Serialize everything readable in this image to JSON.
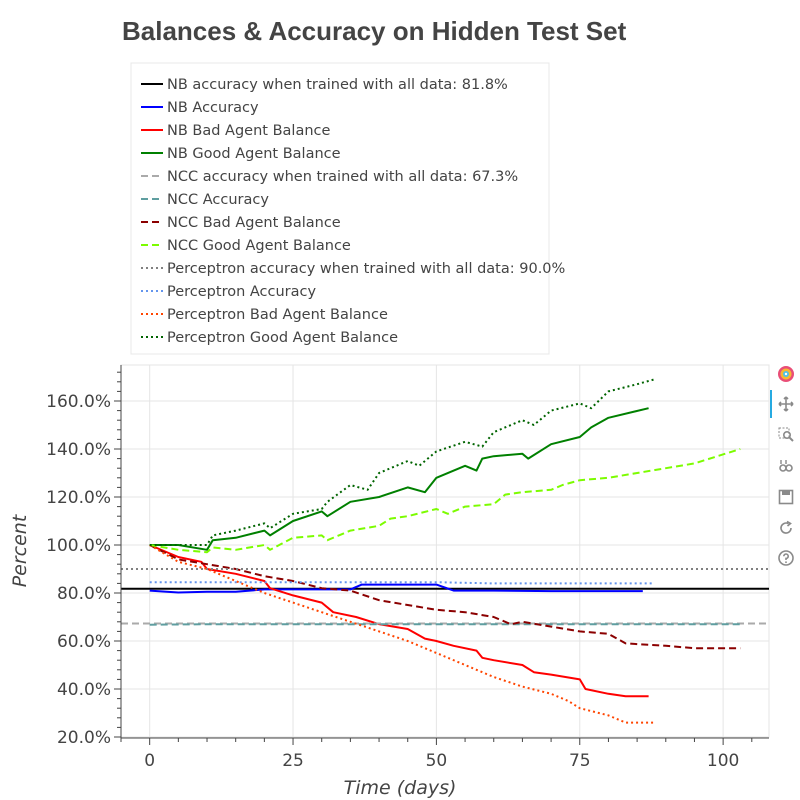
{
  "chart_data": {
    "type": "line",
    "title": "Balances & Accuracy on Hidden Test Set",
    "xlabel": "Time (days)",
    "ylabel": "Percent",
    "xlim": [
      -5,
      108
    ],
    "ylim": [
      20,
      175
    ],
    "xticks": [
      0,
      25,
      50,
      75,
      100
    ],
    "yticks": [
      20,
      40,
      60,
      80,
      100,
      120,
      140,
      160
    ],
    "ytick_labels": [
      "20.0%",
      "40.0%",
      "60.0%",
      "80.0%",
      "100.0%",
      "120.0%",
      "140.0%",
      "160.0%"
    ],
    "grid": true,
    "legend_position": "top-left",
    "series": [
      {
        "name": "NB accuracy when trained with all data: 81.8%",
        "color": "#000000",
        "dash": "solid",
        "x": [
          -5,
          108
        ],
        "y": [
          81.8,
          81.8
        ]
      },
      {
        "name": "NB Accuracy",
        "color": "#0000ff",
        "dash": "solid",
        "x": [
          0,
          5,
          10,
          15,
          20,
          25,
          30,
          35,
          37,
          40,
          45,
          50,
          53,
          60,
          70,
          80,
          86
        ],
        "y": [
          81,
          80.2,
          80.5,
          80.5,
          81.5,
          81.5,
          81.5,
          81.5,
          83.5,
          83.5,
          83.5,
          83.5,
          81,
          81,
          80.8,
          80.8,
          80.8
        ]
      },
      {
        "name": "NB Bad Agent Balance",
        "color": "#ff0000",
        "dash": "solid",
        "x": [
          0,
          5,
          9,
          10,
          15,
          20,
          21,
          25,
          30,
          32,
          36,
          40,
          45,
          48,
          50,
          53,
          57,
          58,
          60,
          65,
          67,
          70,
          75,
          76,
          80,
          83,
          87
        ],
        "y": [
          100,
          95,
          93,
          90,
          88,
          85,
          82,
          79,
          76,
          72,
          70,
          67,
          65,
          61,
          60,
          58,
          56,
          53,
          52,
          50,
          47,
          46,
          44,
          40,
          38,
          37,
          37
        ]
      },
      {
        "name": "NB Good Agent Balance",
        "color": "#008000",
        "dash": "solid",
        "x": [
          0,
          5,
          10,
          11,
          15,
          20,
          21,
          25,
          30,
          31,
          35,
          40,
          45,
          48,
          50,
          55,
          57,
          58,
          60,
          65,
          66,
          70,
          75,
          77,
          80,
          87
        ],
        "y": [
          100,
          100,
          98,
          102,
          103,
          106,
          104,
          110,
          114,
          112,
          118,
          120,
          124,
          122,
          128,
          133,
          131,
          136,
          137,
          138,
          136,
          142,
          145,
          149,
          153,
          157
        ]
      },
      {
        "name": "NCC accuracy when trained with all data: 67.3%",
        "color": "#aaaaaa",
        "dash": "dashed",
        "x": [
          -5,
          108
        ],
        "y": [
          67.3,
          67.3
        ]
      },
      {
        "name": "NCC Accuracy",
        "color": "#5f9ea0",
        "dash": "dashed",
        "x": [
          0,
          10,
          20,
          40,
          60,
          80,
          103
        ],
        "y": [
          66.8,
          67,
          67,
          67,
          67,
          67,
          67
        ]
      },
      {
        "name": "NCC Bad Agent Balance",
        "color": "#8b0000",
        "dash": "dashed",
        "x": [
          0,
          5,
          10,
          15,
          20,
          25,
          30,
          35,
          40,
          45,
          50,
          55,
          60,
          63,
          65,
          70,
          75,
          80,
          83,
          90,
          95,
          103
        ],
        "y": [
          100,
          94,
          92,
          90,
          87,
          85,
          82,
          81,
          77,
          75,
          73,
          72,
          70,
          67,
          68,
          66,
          64,
          63,
          59,
          58,
          57,
          57
        ]
      },
      {
        "name": "NCC Good Agent Balance",
        "color": "#7cfc00",
        "dash": "dashed",
        "x": [
          0,
          5,
          10,
          11,
          15,
          20,
          21,
          25,
          30,
          31,
          35,
          40,
          42,
          45,
          50,
          52,
          55,
          60,
          62,
          65,
          70,
          72,
          75,
          80,
          85,
          90,
          95,
          103
        ],
        "y": [
          100,
          98,
          97,
          99,
          98,
          100,
          98,
          103,
          104,
          102,
          106,
          108,
          111,
          112,
          115,
          113,
          116,
          117,
          121,
          122,
          123,
          125,
          127,
          128,
          130,
          132,
          134,
          140
        ]
      },
      {
        "name": "Perceptron accuracy when trained with all data: 90.0%",
        "color": "#808080",
        "dash": "dotted",
        "x": [
          -5,
          108
        ],
        "y": [
          90,
          90
        ]
      },
      {
        "name": "Perceptron Accuracy",
        "color": "#6495ed",
        "dash": "dotted",
        "x": [
          0,
          20,
          40,
          50,
          60,
          70,
          80,
          88
        ],
        "y": [
          84.5,
          84.5,
          84.5,
          84.5,
          84,
          84,
          84,
          84
        ]
      },
      {
        "name": "Perceptron Bad Agent Balance",
        "color": "#ff4500",
        "dash": "dotted",
        "x": [
          0,
          5,
          10,
          15,
          20,
          25,
          30,
          35,
          40,
          45,
          50,
          55,
          60,
          65,
          70,
          73,
          75,
          80,
          83,
          88
        ],
        "y": [
          100,
          93,
          90,
          85,
          80,
          76,
          72,
          68,
          64,
          60,
          55,
          50,
          45,
          41,
          38,
          35,
          32,
          29,
          26,
          26
        ]
      },
      {
        "name": "Perceptron Good Agent Balance",
        "color": "#006400",
        "dash": "dotted",
        "x": [
          0,
          5,
          10,
          11,
          15,
          20,
          21,
          25,
          30,
          31,
          35,
          38,
          40,
          45,
          47,
          50,
          55,
          58,
          60,
          65,
          67,
          70,
          75,
          77,
          80,
          85,
          88
        ],
        "y": [
          100,
          100,
          100,
          104,
          106,
          109,
          107,
          113,
          115,
          118,
          125,
          123,
          130,
          135,
          133,
          139,
          143,
          141,
          147,
          152,
          150,
          156,
          159,
          157,
          164,
          167,
          169
        ]
      }
    ]
  },
  "toolbar": {
    "icons": [
      "bokeh-logo-icon",
      "pan-icon",
      "box-zoom-icon",
      "wheel-zoom-icon",
      "save-icon",
      "reset-icon",
      "help-icon"
    ]
  }
}
